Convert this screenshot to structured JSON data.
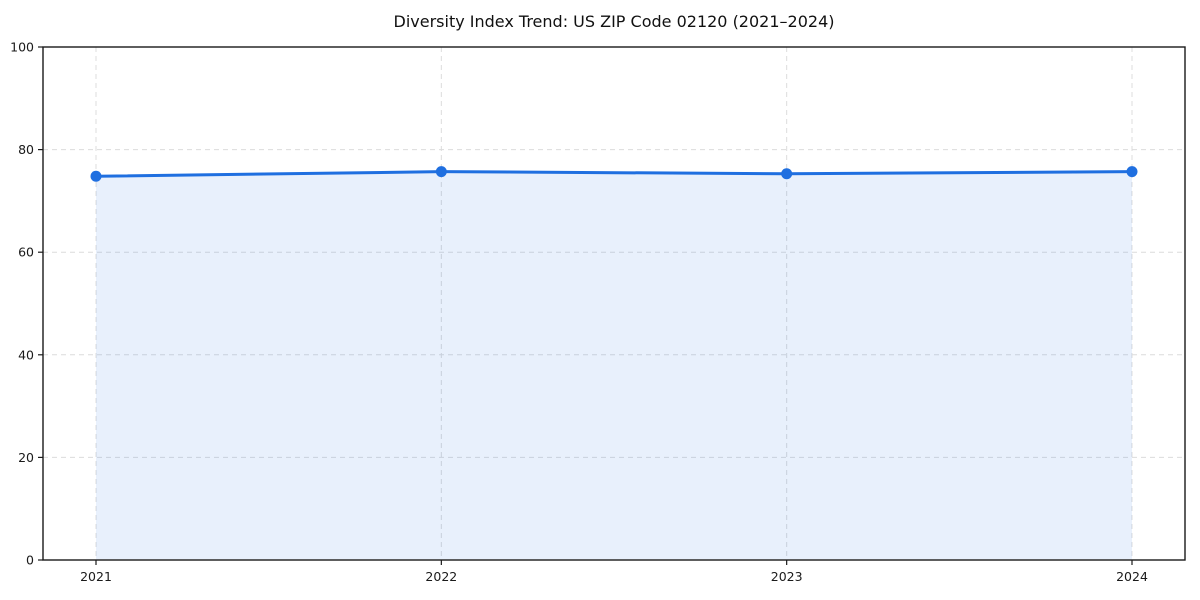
{
  "chart_data": {
    "type": "area",
    "title": "Diversity Index Trend: US ZIP Code 02120 (2021–2024)",
    "categories": [
      "2021",
      "2022",
      "2023",
      "2024"
    ],
    "series": [
      {
        "name": "Diversity Index",
        "values": [
          74.8,
          75.7,
          75.3,
          75.7
        ]
      }
    ],
    "xlabel": "",
    "ylabel": "",
    "ylim": [
      0,
      100
    ],
    "yticks": [
      0,
      20,
      40,
      60,
      80,
      100
    ],
    "grid": true,
    "grid_style": "dashed",
    "legend_position": "none",
    "colors": {
      "line": "#1f6fe0",
      "marker": "#1f6fe0",
      "fill": "rgba(31,111,224,0.10)",
      "grid": "#dcdcdc",
      "axis": "#1a1a1a",
      "text": "#1a1a1a"
    }
  }
}
